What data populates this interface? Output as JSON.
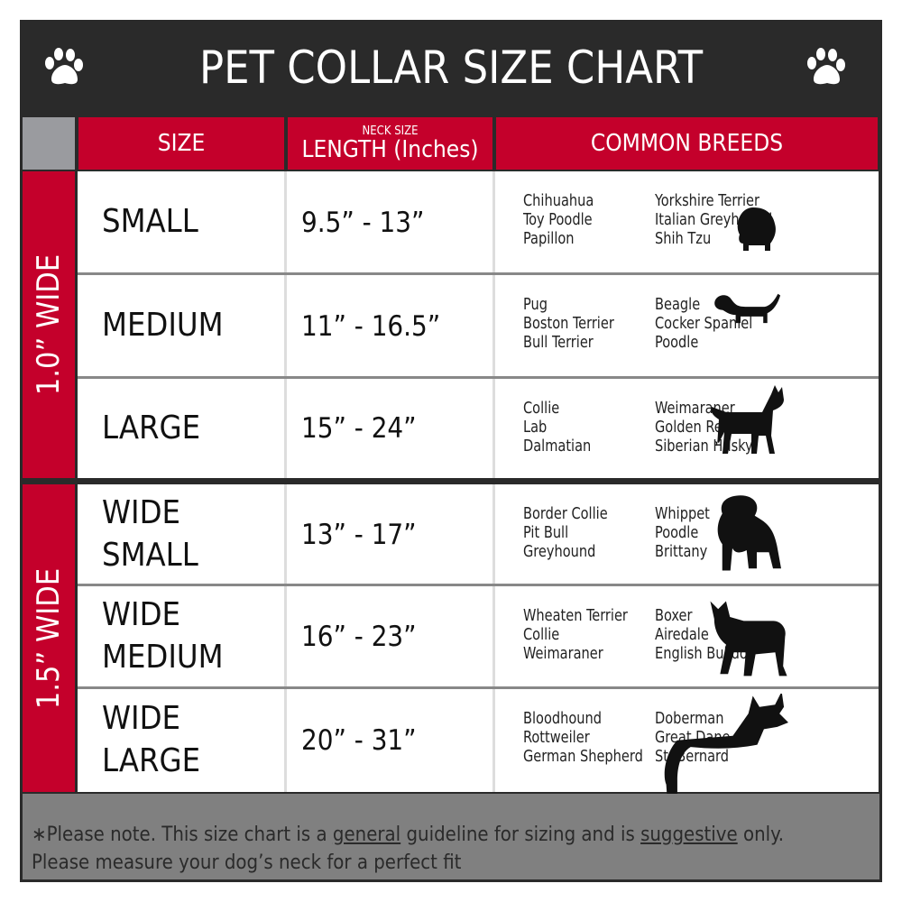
{
  "title": "PET COLLAR SIZE CHART",
  "icons": {
    "left": "paw-print-icon",
    "right": "paw-print-icon"
  },
  "colors": {
    "header_bg": "#2a2a2a",
    "accent": "#c4002b",
    "footer_bg": "#808080"
  },
  "headers": {
    "size": "SIZE",
    "length_small": "NECK SIZE",
    "length": "LENGTH (Inches)",
    "breeds": "COMMON BREEDS"
  },
  "groups": [
    {
      "label": "1.0” WIDE"
    },
    {
      "label": "1.5” WIDE"
    }
  ],
  "rows": [
    {
      "size": [
        "SMALL"
      ],
      "length": "9.5” - 13”",
      "breeds_a": [
        "Chihuahua",
        "Toy Poodle",
        "Papillon"
      ],
      "breeds_b": [
        "Yorkshire Terrier",
        "Italian Greyhound",
        "Shih Tzu"
      ],
      "icon": "small-dog-silhouette-icon"
    },
    {
      "size": [
        "MEDIUM"
      ],
      "length": "11” - 16.5”",
      "breeds_a": [
        "Pug",
        "Boston Terrier",
        "Bull Terrier"
      ],
      "breeds_b": [
        "Beagle",
        "Cocker Spaniel",
        "Poodle"
      ],
      "icon": "medium-dog-silhouette-icon"
    },
    {
      "size": [
        "LARGE"
      ],
      "length": "15” - 24”",
      "breeds_a": [
        "Collie",
        "Lab",
        "Dalmatian"
      ],
      "breeds_b": [
        "Weimaraner",
        "Golden Retriever",
        "Siberian Husky"
      ],
      "icon": "large-dog-silhouette-icon"
    },
    {
      "size": [
        "WIDE",
        "SMALL"
      ],
      "length": "13” - 17”",
      "breeds_a": [
        "Border Collie",
        "Pit Bull",
        "Greyhound"
      ],
      "breeds_b": [
        "Whippet",
        "Poodle",
        "Brittany"
      ],
      "icon": "bulldog-silhouette-icon"
    },
    {
      "size": [
        "WIDE",
        "MEDIUM"
      ],
      "length": "16” - 23”",
      "breeds_a": [
        "Wheaten Terrier",
        "Collie",
        "Weimaraner"
      ],
      "breeds_b": [
        "Boxer",
        "Airedale",
        "English Bulldog"
      ],
      "icon": "pitbull-silhouette-icon"
    },
    {
      "size": [
        "WIDE",
        "LARGE"
      ],
      "length": "20” - 31”",
      "breeds_a": [
        "Bloodhound",
        "Rottweiler",
        "German Shepherd"
      ],
      "breeds_b": [
        "Doberman",
        "Great Dane",
        "St. Bernard"
      ],
      "icon": "doberman-silhouette-icon"
    }
  ],
  "footer": {
    "p1": "∗Please note. This size chart is a",
    "u1": "general",
    "p2": " guideline for sizing and is",
    "u2": "suggestive",
    "p3": " only.",
    "line2": "Please measure your dog’s neck for a perfect fit"
  }
}
